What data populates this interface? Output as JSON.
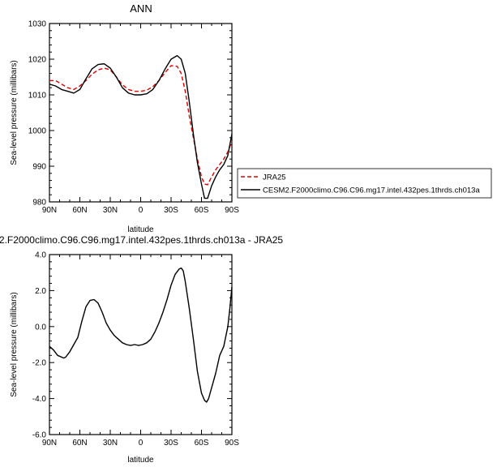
{
  "chart_data": [
    {
      "type": "line",
      "title": "ANN",
      "xlabel": "latitude",
      "ylabel": "Sea-level pressure (millibars)",
      "xlim": [
        90,
        -90
      ],
      "ylim": [
        980,
        1030
      ],
      "xticks": [
        {
          "value": 90,
          "label": "90N"
        },
        {
          "value": 60,
          "label": "60N"
        },
        {
          "value": 30,
          "label": "30N"
        },
        {
          "value": 0,
          "label": "0"
        },
        {
          "value": -30,
          "label": "30S"
        },
        {
          "value": -60,
          "label": "60S"
        },
        {
          "value": -90,
          "label": "90S"
        }
      ],
      "yticks": [
        {
          "value": 1030,
          "label": "1030"
        },
        {
          "value": 1020,
          "label": "1020"
        },
        {
          "value": 1010,
          "label": "1010"
        },
        {
          "value": 1000,
          "label": "1000"
        },
        {
          "value": 990,
          "label": "990"
        },
        {
          "value": 980,
          "label": "980"
        }
      ],
      "legend_placement": "right",
      "series": [
        {
          "name": "JRA25",
          "color": "#e00000",
          "style": "dashed",
          "points": [
            [
              90,
              1014
            ],
            [
              84,
              1014
            ],
            [
              78,
              1013
            ],
            [
              72,
              1012
            ],
            [
              66,
              1011.5
            ],
            [
              60,
              1012.5
            ],
            [
              54,
              1014
            ],
            [
              48,
              1015.8
            ],
            [
              42,
              1017
            ],
            [
              36,
              1017.5
            ],
            [
              30,
              1017
            ],
            [
              24,
              1015
            ],
            [
              18,
              1012.8
            ],
            [
              12,
              1011.5
            ],
            [
              6,
              1011
            ],
            [
              0,
              1011
            ],
            [
              -6,
              1011.3
            ],
            [
              -12,
              1012.3
            ],
            [
              -18,
              1014
            ],
            [
              -24,
              1016.2
            ],
            [
              -30,
              1018.2
            ],
            [
              -36,
              1018
            ],
            [
              -40,
              1016
            ],
            [
              -44,
              1011
            ],
            [
              -48,
              1004
            ],
            [
              -52,
              998
            ],
            [
              -56,
              992
            ],
            [
              -60,
              987
            ],
            [
              -63,
              985
            ],
            [
              -66,
              984.8
            ],
            [
              -70,
              987
            ],
            [
              -74,
              989
            ],
            [
              -78,
              990.5
            ],
            [
              -82,
              992
            ],
            [
              -86,
              994
            ],
            [
              -90,
              997
            ]
          ]
        },
        {
          "name": "CESM2.F2000climo.C96.C96.mg17.intel.432pes.1thrds.ch013a",
          "color": "#000000",
          "style": "solid",
          "points": [
            [
              90,
              1013
            ],
            [
              84,
              1012.5
            ],
            [
              78,
              1011.5
            ],
            [
              72,
              1011
            ],
            [
              66,
              1010.5
            ],
            [
              60,
              1011.5
            ],
            [
              54,
              1014.5
            ],
            [
              48,
              1017.3
            ],
            [
              42,
              1018.5
            ],
            [
              36,
              1018.7
            ],
            [
              30,
              1017.5
            ],
            [
              24,
              1015
            ],
            [
              18,
              1012
            ],
            [
              12,
              1010.5
            ],
            [
              6,
              1010
            ],
            [
              0,
              1010
            ],
            [
              -6,
              1010.3
            ],
            [
              -12,
              1011.5
            ],
            [
              -18,
              1014
            ],
            [
              -24,
              1017.2
            ],
            [
              -30,
              1020
            ],
            [
              -36,
              1021
            ],
            [
              -40,
              1020
            ],
            [
              -44,
              1016
            ],
            [
              -48,
              1008
            ],
            [
              -52,
              999
            ],
            [
              -56,
              991
            ],
            [
              -60,
              985
            ],
            [
              -63,
              981
            ],
            [
              -66,
              981
            ],
            [
              -70,
              984.5
            ],
            [
              -74,
              987
            ],
            [
              -78,
              989
            ],
            [
              -82,
              990.5
            ],
            [
              -86,
              993
            ],
            [
              -90,
              999
            ]
          ]
        }
      ]
    },
    {
      "type": "line",
      "title": "2.F2000climo.C96.C96.mg17.intel.432pes.1thrds.ch013a - JRA25",
      "xlabel": "latitude",
      "ylabel": "Sea-level pressure (millibars)",
      "xlim": [
        90,
        -90
      ],
      "ylim": [
        -6.0,
        4.0
      ],
      "xticks": [
        {
          "value": 90,
          "label": "90N"
        },
        {
          "value": 60,
          "label": "60N"
        },
        {
          "value": 30,
          "label": "30N"
        },
        {
          "value": 0,
          "label": "0"
        },
        {
          "value": -30,
          "label": "30S"
        },
        {
          "value": -60,
          "label": "60S"
        },
        {
          "value": -90,
          "label": "90S"
        }
      ],
      "yticks": [
        {
          "value": 4.0,
          "label": "4.0"
        },
        {
          "value": 2.0,
          "label": "2.0"
        },
        {
          "value": 0.0,
          "label": "0.0"
        },
        {
          "value": -2.0,
          "label": "-2.0"
        },
        {
          "value": -4.0,
          "label": "-4.0"
        },
        {
          "value": -6.0,
          "label": "-6.0"
        }
      ],
      "series": [
        {
          "color": "#000000",
          "style": "solid",
          "points": [
            [
              90,
              -1.1
            ],
            [
              86,
              -1.3
            ],
            [
              82,
              -1.6
            ],
            [
              78,
              -1.7
            ],
            [
              76,
              -1.75
            ],
            [
              74,
              -1.7
            ],
            [
              70,
              -1.4
            ],
            [
              66,
              -1.0
            ],
            [
              62,
              -0.6
            ],
            [
              58,
              0.3
            ],
            [
              54,
              1.1
            ],
            [
              50,
              1.45
            ],
            [
              46,
              1.5
            ],
            [
              42,
              1.3
            ],
            [
              38,
              0.8
            ],
            [
              34,
              0.2
            ],
            [
              30,
              -0.2
            ],
            [
              26,
              -0.5
            ],
            [
              22,
              -0.7
            ],
            [
              18,
              -0.9
            ],
            [
              14,
              -1.0
            ],
            [
              10,
              -1.05
            ],
            [
              6,
              -1.0
            ],
            [
              2,
              -1.05
            ],
            [
              -2,
              -1.0
            ],
            [
              -6,
              -0.9
            ],
            [
              -10,
              -0.7
            ],
            [
              -14,
              -0.3
            ],
            [
              -18,
              0.2
            ],
            [
              -22,
              0.8
            ],
            [
              -26,
              1.5
            ],
            [
              -30,
              2.3
            ],
            [
              -34,
              2.9
            ],
            [
              -38,
              3.2
            ],
            [
              -40,
              3.25
            ],
            [
              -42,
              3.1
            ],
            [
              -44,
              2.5
            ],
            [
              -48,
              1.0
            ],
            [
              -52,
              -0.7
            ],
            [
              -56,
              -2.5
            ],
            [
              -60,
              -3.7
            ],
            [
              -63,
              -4.1
            ],
            [
              -65,
              -4.2
            ],
            [
              -67,
              -4.0
            ],
            [
              -70,
              -3.4
            ],
            [
              -74,
              -2.6
            ],
            [
              -78,
              -1.6
            ],
            [
              -82,
              -1.1
            ],
            [
              -86,
              0.0
            ],
            [
              -88,
              1.0
            ],
            [
              -90,
              2.2
            ]
          ]
        }
      ]
    }
  ]
}
